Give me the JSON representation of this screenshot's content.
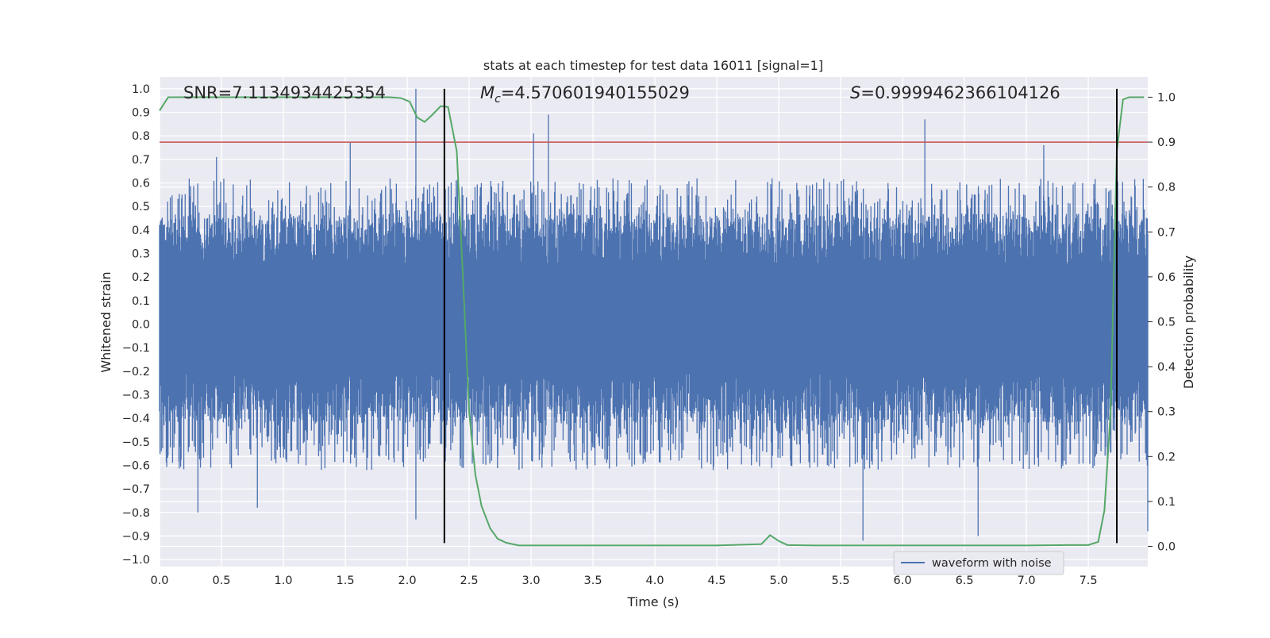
{
  "chart_data": {
    "type": "line",
    "title": "stats at each timestep for test data 16011 [signal=1]",
    "xlabel": "Time (s)",
    "ylabel": "Whitened strain",
    "y2label": "Detection probability",
    "xlim": [
      0.0,
      7.98
    ],
    "ylim": [
      -1.03,
      1.05
    ],
    "y2lim": [
      -0.045,
      1.045
    ],
    "xticks": [
      "0.0",
      "0.5",
      "1.0",
      "1.5",
      "2.0",
      "2.5",
      "3.0",
      "3.5",
      "4.0",
      "4.5",
      "5.0",
      "5.5",
      "6.0",
      "6.5",
      "7.0",
      "7.5"
    ],
    "yticks": [
      "1.0",
      "0.9",
      "0.8",
      "0.7",
      "0.6",
      "0.5",
      "0.4",
      "0.3",
      "0.2",
      "0.1",
      "0.0",
      "−0.1",
      "−0.2",
      "−0.3",
      "−0.4",
      "−0.5",
      "−0.6",
      "−0.7",
      "−0.8",
      "−0.9",
      "−1.0"
    ],
    "y2ticks": [
      "1.0",
      "0.9",
      "0.8",
      "0.7",
      "0.6",
      "0.5",
      "0.4",
      "0.3",
      "0.2",
      "0.1",
      "0.0"
    ],
    "grid": true,
    "legend": {
      "entries": [
        "waveform with noise"
      ],
      "placement": "lower-right"
    },
    "annotations": {
      "snr_label": "SNR=7.1134934425354",
      "mc_symbol": "M",
      "mc_subscript": "c",
      "mc_value": "=4.570601940155029",
      "s_symbol": "S",
      "s_value": "=0.9999462366104126"
    },
    "threshold": {
      "value": 0.9,
      "axis": "right",
      "color": "#c44e52"
    },
    "event_markers": {
      "x": [
        2.3,
        7.73
      ],
      "y_range": [
        -0.93,
        1.0
      ],
      "color": "#000000"
    },
    "series": [
      {
        "name": "waveform with noise",
        "color": "#4c72b0",
        "envelope": {
          "core_min": -0.18,
          "core_max": 0.23,
          "typical_peak_range": [
            0.35,
            0.62
          ],
          "typical_trough_range": [
            -0.38,
            -0.62
          ],
          "notable_peaks": [
            {
              "x": 0.46,
              "y": 0.71
            },
            {
              "x": 1.54,
              "y": 0.77
            },
            {
              "x": 2.07,
              "y": 1.0
            },
            {
              "x": 3.02,
              "y": 0.81
            },
            {
              "x": 3.14,
              "y": 0.89
            },
            {
              "x": 6.18,
              "y": 0.87
            },
            {
              "x": 7.14,
              "y": 0.76
            }
          ],
          "notable_troughs": [
            {
              "x": 0.31,
              "y": -0.8
            },
            {
              "x": 0.79,
              "y": -0.78
            },
            {
              "x": 2.07,
              "y": -0.83
            },
            {
              "x": 5.68,
              "y": -0.92
            },
            {
              "x": 6.61,
              "y": -0.9
            },
            {
              "x": 7.98,
              "y": -0.88
            }
          ]
        }
      },
      {
        "name": "detection probability",
        "axis": "right",
        "color": "#55a868",
        "x": [
          0.0,
          0.07,
          0.14,
          0.3,
          0.6,
          1.0,
          1.4,
          1.86,
          1.95,
          2.02,
          2.08,
          2.14,
          2.2,
          2.27,
          2.33,
          2.4,
          2.45,
          2.5,
          2.55,
          2.6,
          2.67,
          2.73,
          2.8,
          2.9,
          3.0,
          3.3,
          3.6,
          4.0,
          4.5,
          4.86,
          4.93,
          5.0,
          5.07,
          5.3,
          6.0,
          6.6,
          7.0,
          7.35,
          7.5,
          7.58,
          7.63,
          7.68,
          7.73,
          7.78,
          7.83,
          7.9,
          7.95
        ],
        "y": [
          0.97,
          1.0,
          1.0,
          1.0,
          1.0,
          1.0,
          1.0,
          1.0,
          0.998,
          0.99,
          0.955,
          0.945,
          0.96,
          0.98,
          0.978,
          0.88,
          0.6,
          0.3,
          0.16,
          0.09,
          0.04,
          0.017,
          0.008,
          0.002,
          0.002,
          0.002,
          0.002,
          0.002,
          0.002,
          0.005,
          0.025,
          0.012,
          0.003,
          0.002,
          0.002,
          0.002,
          0.002,
          0.003,
          0.003,
          0.01,
          0.08,
          0.3,
          0.88,
          0.995,
          1.0,
          1.0,
          1.0
        ]
      }
    ]
  }
}
